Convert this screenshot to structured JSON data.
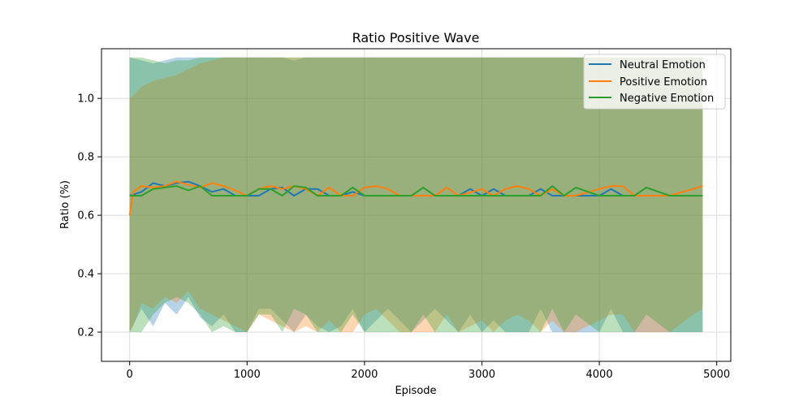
{
  "chart_data": {
    "type": "line",
    "title": "Ratio Positive Wave",
    "xlabel": "Episode",
    "ylabel": "Ratio (%)",
    "xlim": [
      -240,
      5120
    ],
    "ylim": [
      0.1,
      1.17
    ],
    "xticks": [
      0,
      1000,
      2000,
      3000,
      4000,
      5000
    ],
    "xtick_labels": [
      "0",
      "1000",
      "2000",
      "3000",
      "4000",
      "5000"
    ],
    "yticks": [
      0.2,
      0.4,
      0.6,
      0.8,
      1.0
    ],
    "ytick_labels": [
      "0.2",
      "0.4",
      "0.6",
      "0.8",
      "1.0"
    ],
    "grid": true,
    "legend_position": "top-right",
    "series": [
      {
        "name": "Neutral Emotion",
        "color": "#1f77b4",
        "x": [
          0,
          100,
          200,
          300,
          400,
          500,
          600,
          700,
          800,
          900,
          1000,
          1100,
          1200,
          1300,
          1400,
          1500,
          1600,
          1700,
          1800,
          1900,
          2000,
          2200,
          2400,
          2600,
          2800,
          2900,
          3000,
          3100,
          3200,
          3400,
          3500,
          3600,
          3800,
          4000,
          4100,
          4200,
          4400,
          4600,
          4880
        ],
        "mean": [
          0.667,
          0.68,
          0.71,
          0.7,
          0.71,
          0.715,
          0.7,
          0.68,
          0.69,
          0.667,
          0.667,
          0.667,
          0.69,
          0.695,
          0.667,
          0.69,
          0.69,
          0.667,
          0.667,
          0.68,
          0.667,
          0.667,
          0.667,
          0.667,
          0.667,
          0.69,
          0.667,
          0.69,
          0.667,
          0.667,
          0.69,
          0.667,
          0.667,
          0.667,
          0.69,
          0.667,
          0.667,
          0.667,
          0.667
        ],
        "upper": [
          1.14,
          1.13,
          1.12,
          1.13,
          1.14,
          1.14,
          1.14,
          1.14,
          1.14,
          1.14,
          1.14,
          1.14,
          1.14,
          1.14,
          1.13,
          1.14,
          1.14,
          1.14,
          1.14,
          1.14,
          1.14,
          1.14,
          1.14,
          1.14,
          1.14,
          1.14,
          1.14,
          1.14,
          1.14,
          1.14,
          1.14,
          1.14,
          1.14,
          1.14,
          1.14,
          1.14,
          1.14,
          1.14,
          1.14
        ],
        "lower": [
          0.2,
          0.28,
          0.22,
          0.3,
          0.26,
          0.32,
          0.25,
          0.22,
          0.26,
          0.2,
          0.2,
          0.28,
          0.28,
          0.24,
          0.2,
          0.26,
          0.22,
          0.2,
          0.22,
          0.28,
          0.2,
          0.28,
          0.2,
          0.28,
          0.2,
          0.26,
          0.2,
          0.24,
          0.2,
          0.2,
          0.28,
          0.2,
          0.2,
          0.2,
          0.28,
          0.2,
          0.2,
          0.2,
          0.2
        ]
      },
      {
        "name": "Positive Emotion",
        "color": "#ff7f0e",
        "x": [
          0,
          30,
          100,
          200,
          300,
          400,
          500,
          600,
          700,
          800,
          900,
          1000,
          1100,
          1200,
          1300,
          1400,
          1500,
          1600,
          1700,
          1800,
          1900,
          2000,
          2100,
          2200,
          2300,
          2400,
          2600,
          2700,
          2800,
          3000,
          3100,
          3200,
          3300,
          3400,
          3500,
          3600,
          3700,
          3800,
          4000,
          4100,
          4200,
          4300,
          4400,
          4600,
          4800,
          4880
        ],
        "mean": [
          0.6,
          0.68,
          0.7,
          0.695,
          0.7,
          0.715,
          0.705,
          0.695,
          0.71,
          0.7,
          0.685,
          0.667,
          0.69,
          0.7,
          0.69,
          0.7,
          0.69,
          0.667,
          0.695,
          0.667,
          0.667,
          0.695,
          0.7,
          0.69,
          0.667,
          0.667,
          0.667,
          0.695,
          0.667,
          0.69,
          0.667,
          0.69,
          0.7,
          0.69,
          0.667,
          0.69,
          0.667,
          0.667,
          0.69,
          0.7,
          0.7,
          0.667,
          0.667,
          0.667,
          0.69,
          0.7
        ],
        "upper": [
          1.0,
          1.01,
          1.04,
          1.06,
          1.07,
          1.08,
          1.1,
          1.12,
          1.13,
          1.14,
          1.14,
          1.14,
          1.14,
          1.14,
          1.14,
          1.14,
          1.14,
          1.14,
          1.14,
          1.14,
          1.14,
          1.14,
          1.14,
          1.14,
          1.14,
          1.14,
          1.14,
          1.14,
          1.14,
          1.14,
          1.14,
          1.14,
          1.14,
          1.14,
          1.14,
          1.14,
          1.14,
          1.14,
          1.14,
          1.14,
          1.14,
          1.14,
          1.14,
          1.14,
          1.14,
          1.14
        ],
        "lower": [
          0.2,
          0.22,
          0.3,
          0.28,
          0.32,
          0.3,
          0.34,
          0.28,
          0.26,
          0.24,
          0.22,
          0.2,
          0.26,
          0.24,
          0.22,
          0.2,
          0.22,
          0.2,
          0.24,
          0.2,
          0.2,
          0.26,
          0.28,
          0.24,
          0.2,
          0.2,
          0.2,
          0.26,
          0.2,
          0.24,
          0.2,
          0.24,
          0.26,
          0.24,
          0.2,
          0.24,
          0.2,
          0.2,
          0.24,
          0.26,
          0.26,
          0.2,
          0.2,
          0.2,
          0.26,
          0.28
        ]
      },
      {
        "name": "Negative Emotion",
        "color": "#2ca02c",
        "x": [
          0,
          100,
          200,
          300,
          400,
          500,
          600,
          700,
          800,
          900,
          1000,
          1100,
          1200,
          1300,
          1400,
          1500,
          1600,
          1700,
          1800,
          1900,
          2000,
          2200,
          2400,
          2500,
          2600,
          2800,
          3000,
          3200,
          3400,
          3500,
          3600,
          3700,
          3800,
          4000,
          4200,
          4300,
          4400,
          4600,
          4880
        ],
        "mean": [
          0.667,
          0.667,
          0.69,
          0.695,
          0.7,
          0.685,
          0.7,
          0.667,
          0.667,
          0.667,
          0.667,
          0.69,
          0.69,
          0.667,
          0.7,
          0.695,
          0.667,
          0.667,
          0.667,
          0.695,
          0.667,
          0.667,
          0.667,
          0.695,
          0.667,
          0.667,
          0.667,
          0.667,
          0.667,
          0.667,
          0.7,
          0.667,
          0.695,
          0.667,
          0.667,
          0.667,
          0.695,
          0.667,
          0.667
        ],
        "upper": [
          1.14,
          1.14,
          1.13,
          1.12,
          1.13,
          1.13,
          1.14,
          1.14,
          1.14,
          1.14,
          1.14,
          1.14,
          1.14,
          1.14,
          1.14,
          1.14,
          1.14,
          1.14,
          1.14,
          1.14,
          1.14,
          1.14,
          1.14,
          1.14,
          1.14,
          1.14,
          1.14,
          1.14,
          1.14,
          1.14,
          1.14,
          1.14,
          1.14,
          1.14,
          1.14,
          1.14,
          1.14,
          1.14,
          1.14
        ],
        "lower": [
          0.2,
          0.2,
          0.26,
          0.3,
          0.32,
          0.3,
          0.26,
          0.2,
          0.22,
          0.2,
          0.2,
          0.26,
          0.26,
          0.2,
          0.28,
          0.26,
          0.2,
          0.2,
          0.2,
          0.26,
          0.2,
          0.2,
          0.2,
          0.26,
          0.2,
          0.2,
          0.2,
          0.2,
          0.2,
          0.2,
          0.28,
          0.2,
          0.26,
          0.2,
          0.2,
          0.2,
          0.26,
          0.2,
          0.2
        ]
      }
    ]
  }
}
